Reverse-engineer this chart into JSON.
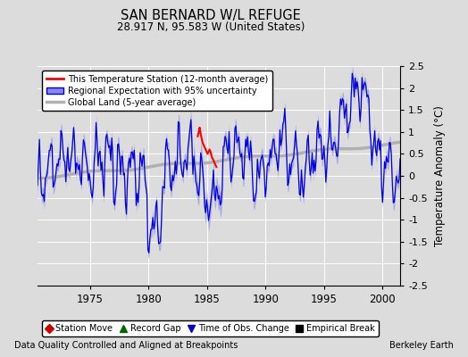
{
  "title": "SAN BERNARD W/L REFUGE",
  "subtitle": "28.917 N, 95.583 W (United States)",
  "ylabel": "Temperature Anomaly (°C)",
  "xlabel_bottom": "Data Quality Controlled and Aligned at Breakpoints",
  "xlabel_right": "Berkeley Earth",
  "ylim": [
    -2.5,
    2.5
  ],
  "xlim": [
    1970.5,
    2001.5
  ],
  "yticks": [
    -2.5,
    -2,
    -1.5,
    -1,
    -0.5,
    0,
    0.5,
    1,
    1.5,
    2,
    2.5
  ],
  "xticks": [
    1975,
    1980,
    1985,
    1990,
    1995,
    2000
  ],
  "bg_color": "#dcdcdc",
  "grid_color": "#ffffff",
  "regional_color": "#0000dd",
  "regional_band_color": "#8888ee",
  "station_color": "#ff0000",
  "global_color": "#b0b0b0",
  "legend_items": [
    {
      "label": "This Temperature Station (12-month average)",
      "color": "#ff0000",
      "lw": 2
    },
    {
      "label": "Regional Expectation with 95% uncertainty",
      "color": "#0000dd",
      "lw": 2
    },
    {
      "label": "Global Land (5-year average)",
      "color": "#b0b0b0",
      "lw": 3
    }
  ],
  "marker_legend": [
    {
      "label": "Station Move",
      "color": "#cc0000",
      "marker": "D"
    },
    {
      "label": "Record Gap",
      "color": "#006600",
      "marker": "^"
    },
    {
      "label": "Time of Obs. Change",
      "color": "#0000cc",
      "marker": "v"
    },
    {
      "label": "Empirical Break",
      "color": "#000000",
      "marker": "s"
    }
  ]
}
